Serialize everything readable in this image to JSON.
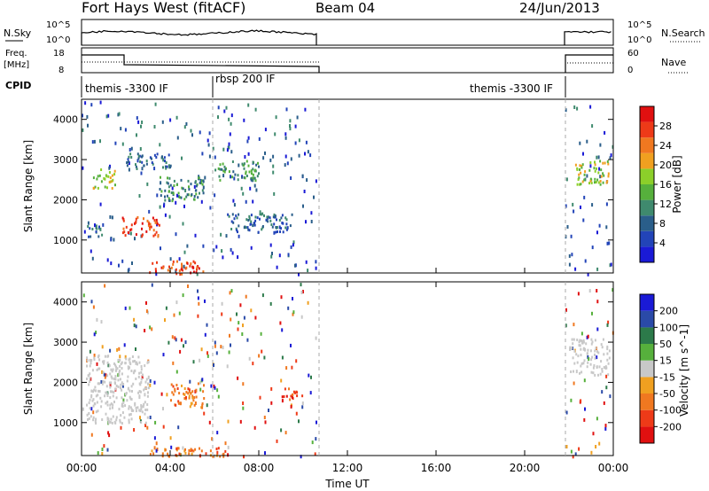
{
  "header": {
    "station": "Fort Hays West (fitACF)",
    "beam": "Beam 04",
    "date": "24/Jun/2013"
  },
  "nsky_panel": {
    "left_label": "N.Sky",
    "right_label": "N.Search",
    "left_ticks": [
      "10^5",
      "10^0"
    ],
    "right_ticks": [
      "10^5",
      "10^0"
    ]
  },
  "freq_panel": {
    "left_label_1": "Freq.",
    "left_label_2": "[MHz]",
    "right_label": "Nave",
    "left_ticks": [
      "18",
      "8"
    ],
    "right_ticks": [
      "60",
      "0"
    ]
  },
  "cpid_panel": {
    "label": "CPID",
    "modes": [
      "themis -3300 IF",
      "rbsp 200 IF",
      "themis -3300 IF"
    ]
  },
  "time_axis": {
    "label": "Time UT",
    "ticks": [
      "00:00",
      "04:00",
      "08:00",
      "12:00",
      "16:00",
      "20:00",
      "00:00"
    ]
  },
  "range_axis": {
    "label": "Slant Range [km]",
    "ticks": [
      "1000",
      "2000",
      "3000",
      "4000"
    ]
  },
  "power_scale": {
    "label": "Power [dB]",
    "ticks": [
      "4",
      "8",
      "12",
      "16",
      "20",
      "24",
      "28"
    ],
    "colors": [
      "#1a1ad6",
      "#2244b8",
      "#2a5e8a",
      "#3f8a6e",
      "#56b03c",
      "#8ccf2a",
      "#f0a020",
      "#f07820",
      "#ee3a18",
      "#e01010"
    ]
  },
  "velocity_scale": {
    "label": "Velocity [m s^-1]",
    "ticks": [
      "200",
      "100",
      "50",
      "15",
      "-15",
      "-50",
      "-100",
      "-200"
    ],
    "colors": [
      "#1a1ad6",
      "#2a4aa8",
      "#2c7a4a",
      "#56b03c",
      "#c8c8c8",
      "#f0a020",
      "#f07820",
      "#ee3a18",
      "#e01010"
    ]
  },
  "chart_data": {
    "type": "heatmap",
    "x_range_hours": [
      0,
      24
    ],
    "y_range_km": [
      180,
      4500
    ],
    "data_coverage_hours": [
      [
        0,
        10.6
      ],
      [
        21.8,
        24
      ]
    ],
    "cpid_change_hours": [
      6.0,
      21.8
    ],
    "power_blobs": [
      {
        "t": [
          0.5,
          1.5
        ],
        "r": [
          2300,
          2800
        ],
        "value_db": 14
      },
      {
        "t": [
          1.8,
          3.5
        ],
        "r": [
          1100,
          1600
        ],
        "value_db": 24
      },
      {
        "t": [
          0.2,
          1.0
        ],
        "r": [
          1100,
          1400
        ],
        "value_db": 6
      },
      {
        "t": [
          3.0,
          5.5
        ],
        "r": [
          180,
          500
        ],
        "value_db": 24
      },
      {
        "t": [
          2.0,
          4.0
        ],
        "r": [
          2800,
          3200
        ],
        "value_db": 6
      },
      {
        "t": [
          3.5,
          5.5
        ],
        "r": [
          2000,
          2600
        ],
        "value_db": 8
      },
      {
        "t": [
          6.0,
          8.0
        ],
        "r": [
          2500,
          3000
        ],
        "value_db": 10
      },
      {
        "t": [
          6.5,
          9.5
        ],
        "r": [
          1200,
          1700
        ],
        "value_db": 6
      },
      {
        "t": [
          22.2,
          23.8
        ],
        "r": [
          2400,
          3000
        ],
        "value_db": 14
      }
    ],
    "velocity_blobs": [
      {
        "t": [
          0.2,
          3.0
        ],
        "r": [
          1000,
          2700
        ],
        "value_ms": 0
      },
      {
        "t": [
          3.0,
          6.5
        ],
        "r": [
          180,
          400
        ],
        "value_ms": -75
      },
      {
        "t": [
          4.0,
          5.5
        ],
        "r": [
          1400,
          2000
        ],
        "value_ms": -75
      },
      {
        "t": [
          9.0,
          10.0
        ],
        "r": [
          1600,
          1900
        ],
        "value_ms": -150
      },
      {
        "t": [
          22.0,
          23.8
        ],
        "r": [
          2200,
          3100
        ],
        "value_ms": 0
      }
    ]
  }
}
